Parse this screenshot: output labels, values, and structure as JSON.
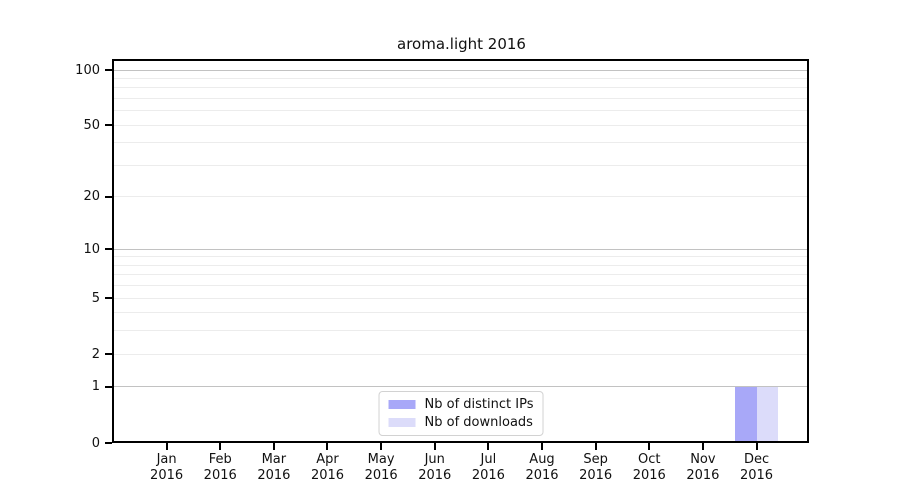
{
  "colors": {
    "grid_major": "#c2c2c2",
    "grid_minor": "#ececec",
    "axis": "#000000",
    "legend_border": "#d2d2d2",
    "background": "#ffffff"
  },
  "chart_data": {
    "type": "bar",
    "title": "aroma.light 2016",
    "xlabel": "",
    "ylabel": "",
    "categories": [
      "Jan",
      "Feb",
      "Mar",
      "Apr",
      "May",
      "Jun",
      "Jul",
      "Aug",
      "Sep",
      "Oct",
      "Nov",
      "Dec"
    ],
    "category_year": "2016",
    "series": [
      {
        "name": "Nb of distinct IPs",
        "color": "#a8a8f8",
        "values": [
          0,
          0,
          0,
          0,
          0,
          0,
          0,
          0,
          0,
          0,
          0,
          1
        ]
      },
      {
        "name": "Nb of downloads",
        "color": "#dcdcfa",
        "values": [
          0,
          0,
          0,
          0,
          0,
          0,
          0,
          0,
          0,
          0,
          0,
          1
        ]
      }
    ],
    "y_axis": {
      "scale": "log10(1+v)",
      "ticks": [
        0,
        1,
        2,
        5,
        10,
        20,
        50,
        100
      ],
      "range": [
        0,
        113
      ],
      "gridlines_major": [
        1,
        10,
        100
      ],
      "gridlines_minor": [
        2,
        3,
        4,
        5,
        6,
        7,
        8,
        9,
        20,
        30,
        40,
        50,
        60,
        70,
        80,
        90
      ]
    },
    "grid": true,
    "legend_position": "lower center"
  }
}
